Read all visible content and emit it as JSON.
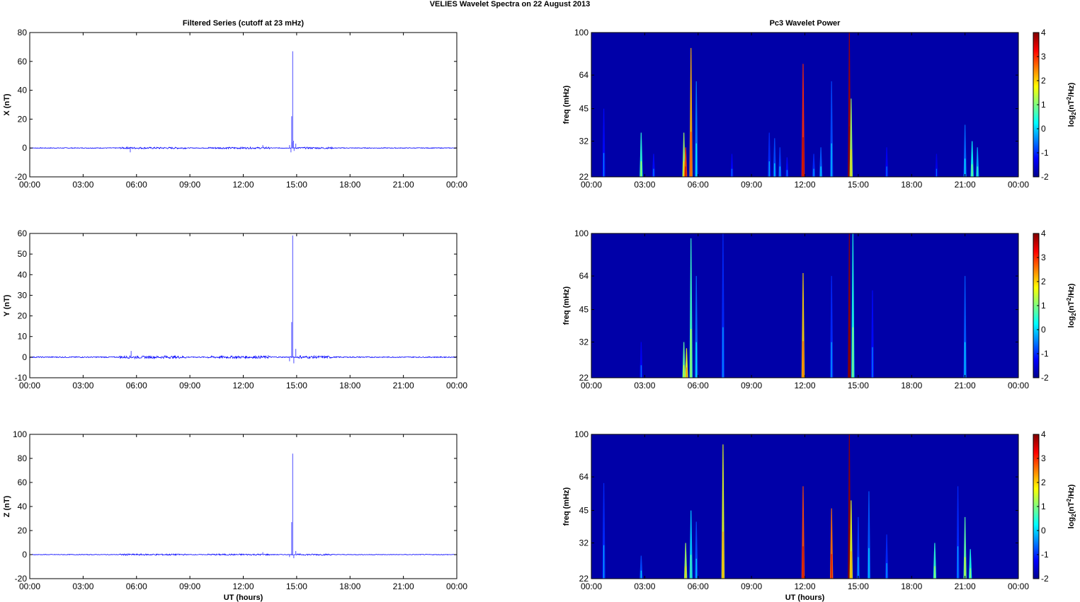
{
  "suptitle": "VELIES Wavelet Spectra on 22 August    2013",
  "chart_data": [
    {
      "type": "line",
      "title": "Filtered Series (cutoff at 23 mHz)",
      "ylabel": "X (nT)",
      "xlabel": "",
      "xlim": [
        0,
        24
      ],
      "ylim": [
        -20,
        80
      ],
      "yticks": [
        "-20",
        "0",
        "20",
        "40",
        "60",
        "80"
      ],
      "xticks": [
        "00:00",
        "03:00",
        "06:00",
        "09:00",
        "12:00",
        "15:00",
        "18:00",
        "21:00",
        "00:00"
      ],
      "grid": false,
      "color": "#0000ff",
      "spikes": [
        {
          "t": 14.6,
          "v": 2
        },
        {
          "t": 14.68,
          "v": -3
        },
        {
          "t": 14.72,
          "v": 22
        },
        {
          "t": 14.74,
          "v": 4
        },
        {
          "t": 14.78,
          "v": 67
        },
        {
          "t": 14.82,
          "v": 5
        },
        {
          "t": 14.86,
          "v": -2
        },
        {
          "t": 14.95,
          "v": 3
        },
        {
          "t": 5.65,
          "v": -3
        },
        {
          "t": 5.5,
          "v": 1
        },
        {
          "t": 13.1,
          "v": 2
        },
        {
          "t": 13.3,
          "v": 1
        }
      ]
    },
    {
      "type": "line",
      "title": "",
      "ylabel": "Y (nT)",
      "xlabel": "",
      "xlim": [
        0,
        24
      ],
      "ylim": [
        -10,
        60
      ],
      "yticks": [
        "-10",
        "0",
        "10",
        "20",
        "30",
        "40",
        "50",
        "60"
      ],
      "xticks": [
        "00:00",
        "03:00",
        "06:00",
        "09:00",
        "12:00",
        "15:00",
        "18:00",
        "21:00",
        "00:00"
      ],
      "grid": false,
      "color": "#0000ff",
      "spikes": [
        {
          "t": 5.7,
          "v": 3
        },
        {
          "t": 5.9,
          "v": -1
        },
        {
          "t": 7.6,
          "v": 1
        },
        {
          "t": 14.6,
          "v": -2
        },
        {
          "t": 14.72,
          "v": 17
        },
        {
          "t": 14.78,
          "v": 59
        },
        {
          "t": 14.84,
          "v": -3
        },
        {
          "t": 14.95,
          "v": 4
        },
        {
          "t": 15.2,
          "v": 1
        },
        {
          "t": 13.4,
          "v": 1
        }
      ]
    },
    {
      "type": "line",
      "title": "",
      "ylabel": "Z (nT)",
      "xlabel": "UT (hours)",
      "xlim": [
        0,
        24
      ],
      "ylim": [
        -20,
        100
      ],
      "yticks": [
        "-20",
        "0",
        "20",
        "40",
        "60",
        "80",
        "100"
      ],
      "xticks": [
        "00:00",
        "03:00",
        "06:00",
        "09:00",
        "12:00",
        "15:00",
        "18:00",
        "21:00",
        "00:00"
      ],
      "grid": false,
      "color": "#0000ff",
      "spikes": [
        {
          "t": 14.6,
          "v": -2
        },
        {
          "t": 14.72,
          "v": 27
        },
        {
          "t": 14.78,
          "v": 84
        },
        {
          "t": 14.84,
          "v": -3
        },
        {
          "t": 14.95,
          "v": 3
        },
        {
          "t": 13.1,
          "v": 2
        },
        {
          "t": 5.5,
          "v": 1
        }
      ]
    },
    {
      "type": "heatmap",
      "title": "Pc3 Wavelet Power",
      "ylabel": "freq (mHz)",
      "xlabel": "",
      "xlim": [
        0,
        24
      ],
      "yticks": [
        "22",
        "32",
        "45",
        "64",
        "100"
      ],
      "xticks": [
        "00:00",
        "03:00",
        "06:00",
        "09:00",
        "12:00",
        "15:00",
        "18:00",
        "21:00",
        "00:00"
      ],
      "colorbar": {
        "label": "log2(nT2/Hz)",
        "min": -2,
        "max": 4,
        "ticks": [
          "-2",
          "-1",
          "0",
          "1",
          "2",
          "3",
          "4"
        ]
      },
      "streaks": [
        {
          "t": 0.7,
          "top": 45,
          "v": -1.2
        },
        {
          "t": 2.8,
          "top": 35,
          "v": 0.5
        },
        {
          "t": 3.5,
          "top": 28,
          "v": -1.2
        },
        {
          "t": 5.2,
          "top": 35,
          "v": 1.2
        },
        {
          "t": 5.3,
          "top": 30,
          "v": 2.8
        },
        {
          "t": 5.6,
          "top": 85,
          "v": 2.2
        },
        {
          "t": 5.9,
          "top": 60,
          "v": -0.5
        },
        {
          "t": 7.9,
          "top": 28,
          "v": -1.3
        },
        {
          "t": 10.0,
          "top": 35,
          "v": -1.0
        },
        {
          "t": 10.3,
          "top": 33,
          "v": -0.8
        },
        {
          "t": 10.6,
          "top": 30,
          "v": -0.9
        },
        {
          "t": 11.0,
          "top": 27,
          "v": -1.2
        },
        {
          "t": 11.9,
          "top": 72,
          "v": 3.0
        },
        {
          "t": 12.5,
          "top": 28,
          "v": -1.0
        },
        {
          "t": 12.9,
          "top": 30,
          "v": -0.7
        },
        {
          "t": 13.5,
          "top": 60,
          "v": -0.8
        },
        {
          "t": 14.5,
          "top": 100,
          "v": 3.8
        },
        {
          "t": 14.6,
          "top": 50,
          "v": 1.2
        },
        {
          "t": 16.6,
          "top": 30,
          "v": -1.3
        },
        {
          "t": 19.4,
          "top": 28,
          "v": -1.4
        },
        {
          "t": 21.0,
          "top": 38,
          "v": -0.6
        },
        {
          "t": 21.4,
          "top": 32,
          "v": 0.3
        },
        {
          "t": 21.7,
          "top": 30,
          "v": -0.2
        }
      ]
    },
    {
      "type": "heatmap",
      "title": "",
      "ylabel": "freq (mHz)",
      "xlabel": "",
      "xlim": [
        0,
        24
      ],
      "yticks": [
        "22",
        "32",
        "45",
        "64",
        "100"
      ],
      "xticks": [
        "00:00",
        "03:00",
        "06:00",
        "09:00",
        "12:00",
        "15:00",
        "18:00",
        "21:00",
        "00:00"
      ],
      "colorbar": {
        "label": "log2(nT2/Hz)",
        "min": -2,
        "max": 4,
        "ticks": [
          "-2",
          "-1",
          "0",
          "1",
          "2",
          "3",
          "4"
        ]
      },
      "streaks": [
        {
          "t": 2.8,
          "top": 32,
          "v": -1.3
        },
        {
          "t": 5.2,
          "top": 32,
          "v": 0.8
        },
        {
          "t": 5.35,
          "top": 30,
          "v": 1.6
        },
        {
          "t": 5.6,
          "top": 95,
          "v": 0.6
        },
        {
          "t": 5.9,
          "top": 64,
          "v": -0.6
        },
        {
          "t": 7.4,
          "top": 100,
          "v": -1.0
        },
        {
          "t": 11.9,
          "top": 66,
          "v": 2.0
        },
        {
          "t": 13.5,
          "top": 64,
          "v": -1.0
        },
        {
          "t": 14.5,
          "top": 100,
          "v": 3.9
        },
        {
          "t": 14.7,
          "top": 100,
          "v": 0.4
        },
        {
          "t": 15.8,
          "top": 55,
          "v": -1.2
        },
        {
          "t": 21.0,
          "top": 64,
          "v": -0.7
        }
      ]
    },
    {
      "type": "heatmap",
      "title": "",
      "ylabel": "freq (mHz)",
      "xlabel": "UT (hours)",
      "xlim": [
        0,
        24
      ],
      "yticks": [
        "22",
        "32",
        "45",
        "64",
        "100"
      ],
      "xticks": [
        "00:00",
        "03:00",
        "06:00",
        "09:00",
        "12:00",
        "15:00",
        "18:00",
        "21:00",
        "00:00"
      ],
      "colorbar": {
        "label": "log2(nT2/Hz)",
        "min": -2,
        "max": 4,
        "ticks": [
          "-2",
          "-1",
          "0",
          "1",
          "2",
          "3",
          "4"
        ]
      },
      "streaks": [
        {
          "t": 0.7,
          "top": 60,
          "v": -1.0
        },
        {
          "t": 2.8,
          "top": 28,
          "v": -0.8
        },
        {
          "t": 5.3,
          "top": 32,
          "v": 1.2
        },
        {
          "t": 5.6,
          "top": 45,
          "v": 0.0
        },
        {
          "t": 5.9,
          "top": 40,
          "v": -0.8
        },
        {
          "t": 7.4,
          "top": 90,
          "v": 1.6
        },
        {
          "t": 11.9,
          "top": 58,
          "v": 2.8
        },
        {
          "t": 13.5,
          "top": 46,
          "v": 2.6
        },
        {
          "t": 14.5,
          "top": 100,
          "v": 3.9
        },
        {
          "t": 14.6,
          "top": 50,
          "v": 1.6
        },
        {
          "t": 15.0,
          "top": 42,
          "v": -0.9
        },
        {
          "t": 15.6,
          "top": 55,
          "v": -0.7
        },
        {
          "t": 16.6,
          "top": 35,
          "v": -1.0
        },
        {
          "t": 19.3,
          "top": 32,
          "v": 0.5
        },
        {
          "t": 20.6,
          "top": 58,
          "v": -1.0
        },
        {
          "t": 21.0,
          "top": 42,
          "v": 0.8
        },
        {
          "t": 21.3,
          "top": 30,
          "v": 0.4
        }
      ]
    }
  ]
}
